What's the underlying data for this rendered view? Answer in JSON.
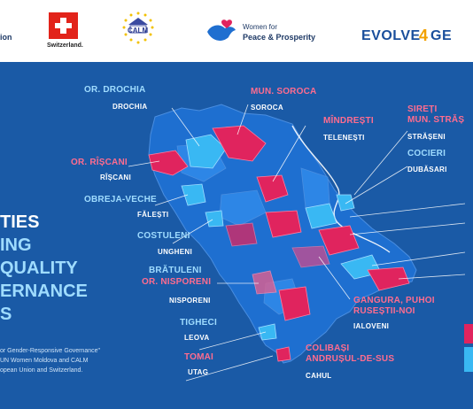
{
  "header": {
    "logo_partial": "ion",
    "switzerland": "Switzerland.",
    "calm": "CALM",
    "wpp_line1": "Women for",
    "wpp_line2": "Peace & Prosperity",
    "evolve_a": "EVOLVE",
    "evolve_b": "4",
    "evolve_c": "GE"
  },
  "headline": {
    "l1": "TIES",
    "l2": "ING",
    "l3": "QUALITY",
    "l4": "ERNANCE",
    "l5": "S"
  },
  "footnote": {
    "f1": "or Gender-Responsive Governance\"",
    "f2": "UN Women Moldova and CALM",
    "f3": "opean Union and Switzerland."
  },
  "labels": {
    "drochia_or": "OR. DROCHIA",
    "drochia": "DROCHIA",
    "soroca_mun": "MUN. SOROCA",
    "soroca": "SOROCA",
    "rascani_or": "OR. RÎȘCANI",
    "rascani": "RÎȘCANI",
    "mindresti": "MÎNDREȘTI",
    "telenesti": "TELENEȘTI",
    "sireti_1": "SIREȚI",
    "sireti_2": "MUN. STRĂȘ",
    "straseni": "STRĂȘENI",
    "cocieri": "COCIERI",
    "dubasari": "DUBĂSARI",
    "obreja": "OBREJA-VECHE",
    "falesti": "FĂLEȘTI",
    "costuleni": "COSTULENI",
    "ungheni": "UNGHENI",
    "bratuleni": "BRĂTULENI",
    "nisporeni_or": "OR. NISPORENI",
    "nisporeni": "NISPORENI",
    "gangura_1": "GANGURA, PUHOI",
    "gangura_2": "RUSEȘTII-NOI",
    "ialoveni": "IALOVENI",
    "tigheci": "TIGHECI",
    "leova": "LEOVA",
    "tomai": "TOMAI",
    "utag": "UTAG",
    "colibasi_1": "COLIBAȘI",
    "colibasi_2": "ANDRUȘUL-DE-SUS",
    "cahul": "CAHUL"
  },
  "colors": {
    "background": "#1a5aa6",
    "region_blue": "#1e6fd0",
    "region_mid": "#2d86e6",
    "highlight_cyan": "#39b8f3",
    "highlight_pink": "#e0245e",
    "label_cyan": "#9fdcff",
    "label_pink": "#ff6c8f"
  }
}
